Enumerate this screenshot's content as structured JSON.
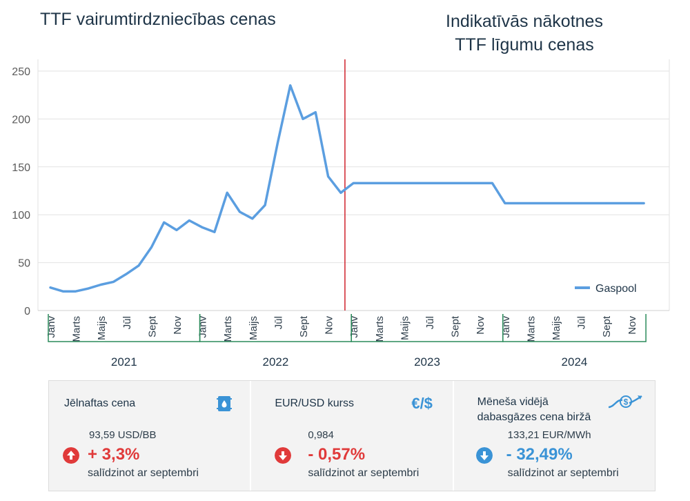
{
  "titles": {
    "historical": "TTF vairumtirdzniecības cenas",
    "futures_line1": "Indikatīvās nākotnes",
    "futures_line2": "TTF līgumu cenas"
  },
  "chart_data": {
    "type": "line",
    "title": "TTF vairumtirdzniecības cenas",
    "ylabel": "",
    "xlabel": "",
    "ylim": [
      0,
      250
    ],
    "yticks": [
      0,
      50,
      100,
      150,
      200,
      250
    ],
    "grid": true,
    "legend": {
      "position": "bottom-right",
      "entries": [
        "Gaspool"
      ]
    },
    "divider_after_index": 23,
    "series": [
      {
        "name": "Gaspool",
        "color": "#5b9ee0",
        "values": [
          24,
          20,
          20,
          23,
          27,
          30,
          38,
          47,
          66,
          92,
          84,
          94,
          87,
          82,
          123,
          103,
          96,
          110,
          175,
          235,
          200,
          207,
          140,
          123,
          133,
          133,
          133,
          133,
          133,
          133,
          133,
          133,
          133,
          133,
          133,
          133,
          112,
          112,
          112,
          112,
          112,
          112,
          112,
          112,
          112,
          112,
          112,
          112
        ]
      }
    ],
    "month_labels": [
      "Janv",
      "Marts",
      "Maijs",
      "Jūl",
      "Sept",
      "Nov"
    ],
    "years": [
      "2021",
      "2022",
      "2023",
      "2024"
    ]
  },
  "cards": [
    {
      "title": "Jēlnaftas cena",
      "value": "93,59 USD/BB",
      "change": "+ 3,3%",
      "direction": "up",
      "change_color": "#e03a3a",
      "note": "salīdzinot ar septembri",
      "icon": "oil-barrel-icon"
    },
    {
      "title": "EUR/USD kurss",
      "value": "0,984",
      "change": "- 0,57%",
      "direction": "down",
      "change_color": "#e03a3a",
      "note": "salīdzinot ar septembri",
      "icon_text": "€/$",
      "icon": "currency-icon"
    },
    {
      "title_line1": "Mēneša vidējā",
      "title_line2": "dabasgāzes cena biržā",
      "value": "133,21 EUR/MWh",
      "change": "- 32,49%",
      "direction": "down",
      "change_color": "#3a93d6",
      "note": "salīdzinot ar septembri",
      "icon": "dollar-trend-icon"
    }
  ]
}
